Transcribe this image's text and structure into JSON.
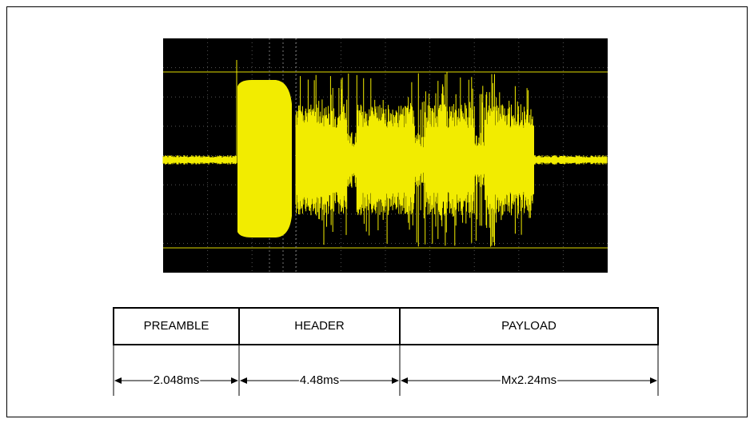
{
  "packet": {
    "fields": [
      {
        "label": "PREAMBLE",
        "duration": "2.048ms"
      },
      {
        "label": "HEADER",
        "duration": "4.48ms"
      },
      {
        "label": "PAYLOAD",
        "duration": "Mx2.24ms"
      }
    ]
  }
}
